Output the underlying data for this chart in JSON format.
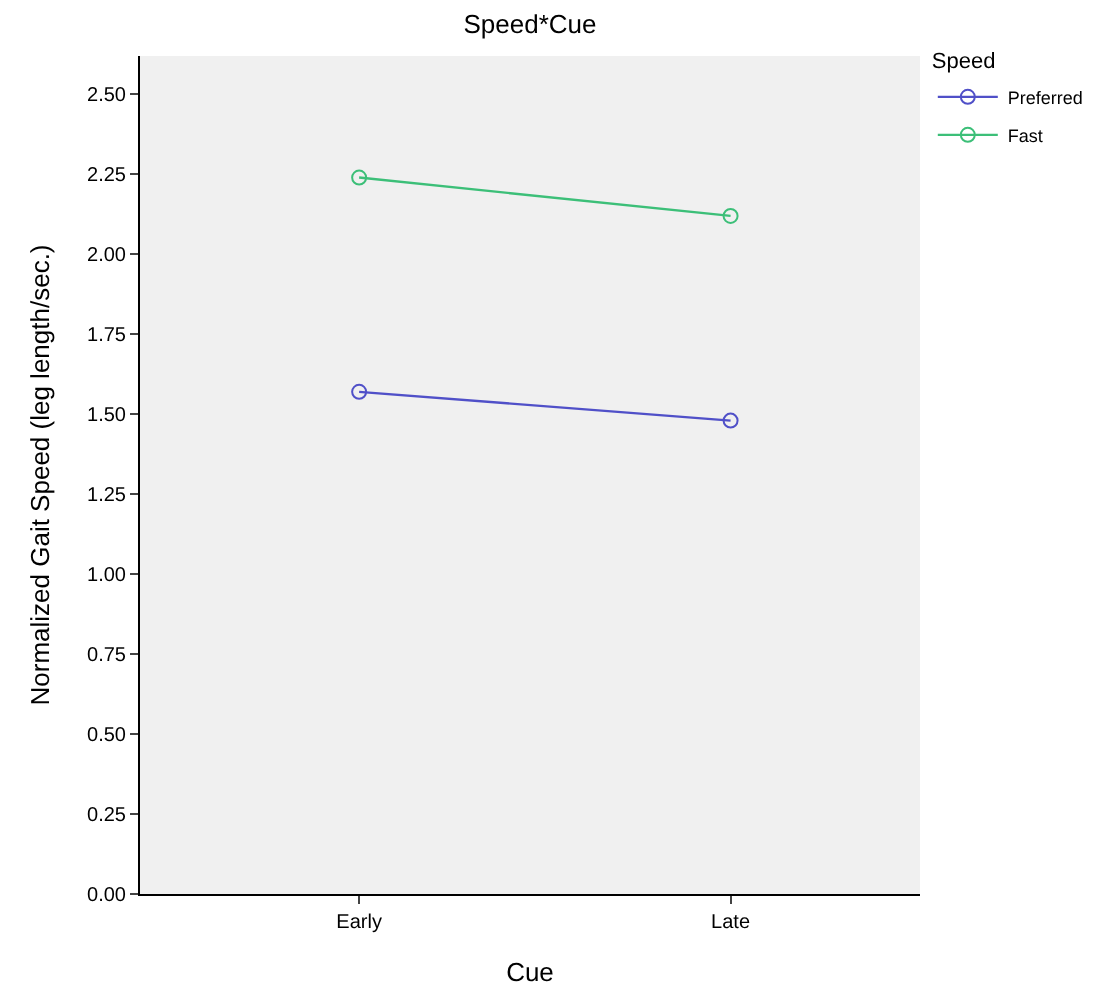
{
  "chart_data": {
    "type": "line",
    "title": "Speed*Cue",
    "xlabel": "Cue",
    "ylabel": "Normalized Gait Speed (leg length/sec.)",
    "legend_title": "Speed",
    "categories": [
      "Early",
      "Late"
    ],
    "series": [
      {
        "name": "Preferred",
        "color": "#5050c8",
        "values": [
          1.57,
          1.48
        ]
      },
      {
        "name": "Fast",
        "color": "#3cbf78",
        "values": [
          2.24,
          2.12
        ]
      }
    ],
    "ylim": [
      0,
      2.62
    ],
    "yticks": [
      {
        "value": 0,
        "label": "0.00"
      },
      {
        "value": 0.25,
        "label": "0.25"
      },
      {
        "value": 0.5,
        "label": "0.50"
      },
      {
        "value": 0.75,
        "label": "0.75"
      },
      {
        "value": 1,
        "label": "1.00"
      },
      {
        "value": 1.25,
        "label": "1.25"
      },
      {
        "value": 1.5,
        "label": "1.50"
      },
      {
        "value": 1.75,
        "label": "1.75"
      },
      {
        "value": 2,
        "label": "2.00"
      },
      {
        "value": 2.25,
        "label": "2.25"
      },
      {
        "value": 2.5,
        "label": "2.50"
      }
    ],
    "grid": false,
    "legend": "top right",
    "marker": "circle",
    "line_style": "solid"
  }
}
